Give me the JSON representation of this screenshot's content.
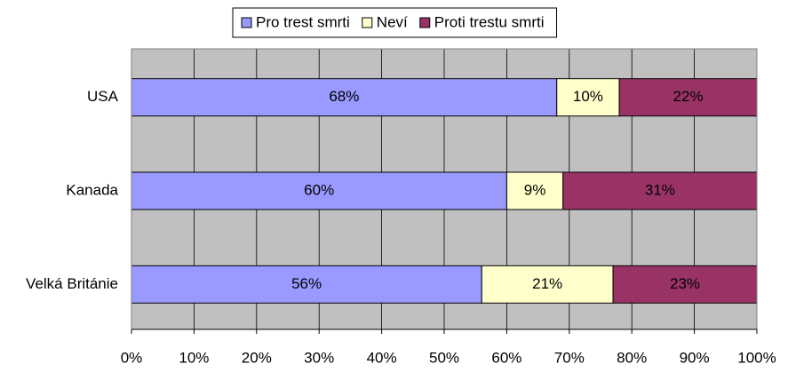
{
  "chart_data": {
    "type": "stacked-barh",
    "categories": [
      "USA",
      "Kanada",
      "Velká Británie"
    ],
    "series": [
      {
        "name": "Pro trest smrti",
        "color": "#9999ff",
        "values": [
          68,
          60,
          56
        ],
        "value_labels": [
          "68%",
          "60%",
          "56%"
        ]
      },
      {
        "name": "Neví",
        "color": "#ffffcc",
        "values": [
          10,
          9,
          21
        ],
        "value_labels": [
          "10%",
          "9%",
          "21%"
        ]
      },
      {
        "name": "Proti trestu smrti",
        "color": "#993366",
        "values": [
          22,
          31,
          23
        ],
        "value_labels": [
          "22%",
          "31%",
          "23%"
        ]
      }
    ],
    "xlim": [
      0,
      100
    ],
    "xticks": [
      {
        "value": 0,
        "label": "0%"
      },
      {
        "value": 10,
        "label": "10%"
      },
      {
        "value": 20,
        "label": "20%"
      },
      {
        "value": 30,
        "label": "30%"
      },
      {
        "value": 40,
        "label": "40%"
      },
      {
        "value": 50,
        "label": "50%"
      },
      {
        "value": 60,
        "label": "60%"
      },
      {
        "value": 70,
        "label": "70%"
      },
      {
        "value": 80,
        "label": "80%"
      },
      {
        "value": 90,
        "label": "90%"
      },
      {
        "value": 100,
        "label": "100%"
      }
    ],
    "grid": true,
    "legend": "top",
    "background": "#c0c0c0"
  }
}
